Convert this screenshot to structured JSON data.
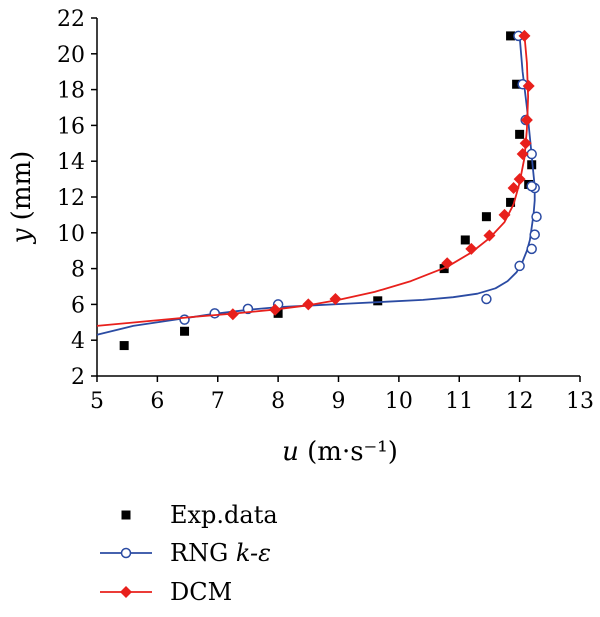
{
  "chart_data": {
    "type": "scatter",
    "xlim": [
      5,
      13
    ],
    "ylim": [
      2,
      22
    ],
    "xticks": [
      5,
      6,
      7,
      8,
      9,
      10,
      11,
      12,
      13
    ],
    "yticks": [
      2,
      4,
      6,
      8,
      10,
      12,
      14,
      16,
      18,
      20,
      22
    ],
    "xlabel": "u (m·s⁻¹)",
    "ylabel": "y (mm)",
    "grid": false,
    "legend_position": "bottom-left",
    "series": [
      {
        "name": "Exp.data",
        "type": "scatter",
        "marker": "square",
        "color": "#000000",
        "x": [
          5.45,
          6.45,
          8.0,
          9.65,
          10.75,
          11.1,
          11.45,
          11.85,
          11.85,
          11.95,
          12.0,
          12.15,
          12.2
        ],
        "y": [
          3.7,
          4.5,
          5.5,
          6.2,
          8.0,
          9.6,
          10.9,
          11.7,
          21.0,
          18.3,
          15.5,
          12.7,
          13.8
        ]
      },
      {
        "name": "RNG k-ε",
        "type": "line",
        "marker": "circle-open",
        "color": "#2b4ba3",
        "x": [
          5.0,
          5.6,
          6.2,
          6.9,
          7.5,
          8.0,
          8.6,
          9.2,
          9.8,
          10.4,
          10.9,
          11.3,
          11.6,
          11.8,
          11.95,
          12.05,
          12.12,
          12.17,
          12.2,
          12.23,
          12.25,
          12.25,
          12.22,
          12.18,
          12.12,
          12.05,
          12.0
        ],
        "y": [
          4.3,
          4.8,
          5.1,
          5.45,
          5.7,
          5.85,
          5.95,
          6.05,
          6.15,
          6.25,
          6.4,
          6.6,
          6.9,
          7.3,
          7.8,
          8.4,
          9.0,
          9.6,
          10.3,
          11.0,
          11.8,
          12.6,
          13.6,
          15.0,
          17.0,
          19.0,
          21.0
        ],
        "marker_x": [
          6.45,
          6.95,
          7.5,
          8.0,
          11.45,
          12.0,
          12.2,
          12.25,
          12.28,
          12.25,
          12.2,
          12.2,
          12.1,
          12.05,
          11.98
        ],
        "marker_y": [
          5.15,
          5.5,
          5.75,
          6.0,
          6.3,
          8.15,
          9.1,
          9.9,
          10.9,
          12.5,
          12.6,
          14.4,
          16.3,
          18.3,
          21.0
        ]
      },
      {
        "name": "DCM",
        "type": "line",
        "marker": "diamond",
        "color": "#e8201c",
        "x": [
          5.0,
          5.8,
          6.6,
          7.3,
          7.9,
          8.5,
          9.0,
          9.6,
          10.2,
          10.8,
          11.2,
          11.5,
          11.75,
          11.9,
          12.0,
          12.08,
          12.12,
          12.14,
          12.12,
          12.08
        ],
        "y": [
          4.8,
          5.05,
          5.3,
          5.5,
          5.7,
          5.95,
          6.25,
          6.7,
          7.3,
          8.1,
          8.9,
          9.7,
          10.6,
          11.6,
          12.8,
          14.2,
          15.8,
          17.6,
          19.5,
          21.0
        ],
        "marker_x": [
          7.25,
          7.95,
          8.5,
          8.95,
          10.8,
          11.2,
          11.5,
          11.75,
          11.9,
          12.0,
          12.05,
          12.1,
          12.12,
          12.15,
          12.08
        ],
        "marker_y": [
          5.45,
          5.7,
          6.0,
          6.3,
          8.3,
          9.1,
          9.85,
          11.0,
          12.5,
          13.0,
          14.4,
          15.0,
          16.3,
          18.2,
          21.0
        ]
      }
    ]
  }
}
